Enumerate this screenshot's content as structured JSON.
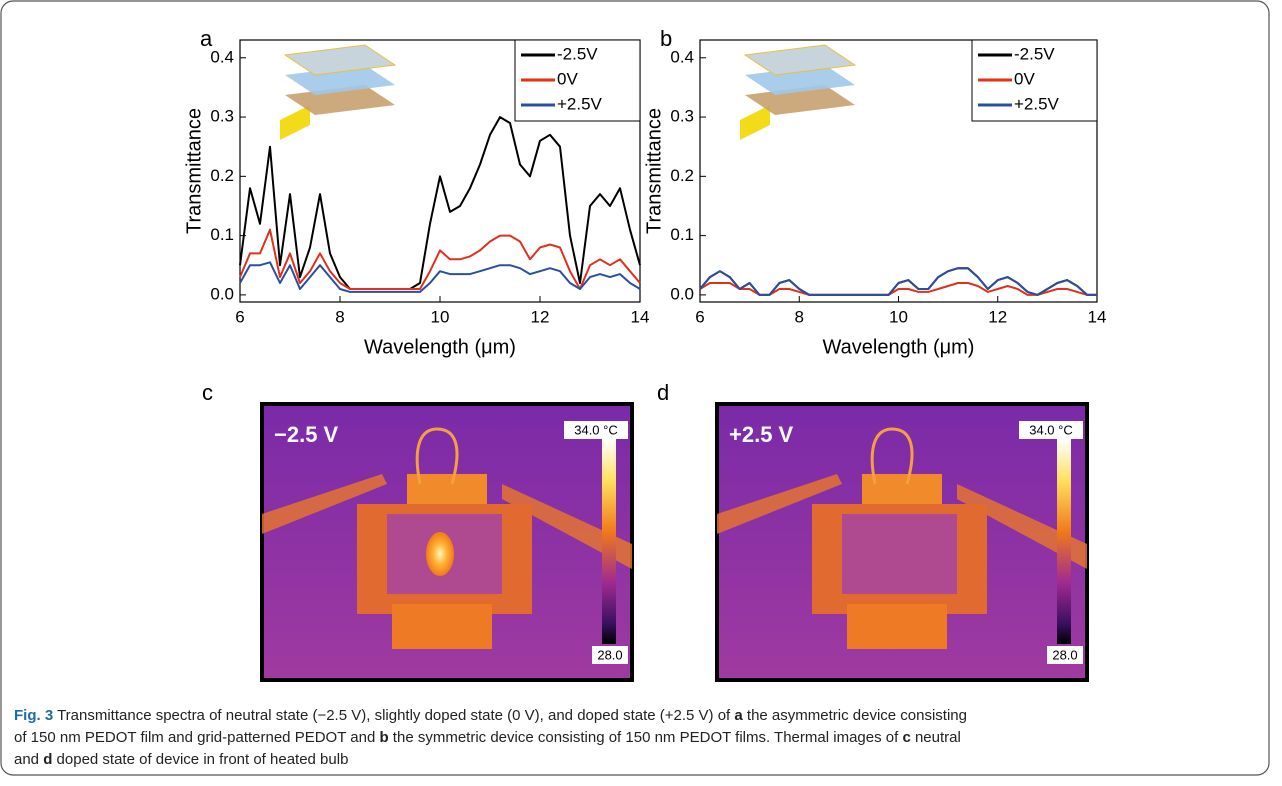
{
  "chart_data": [
    {
      "type": "line",
      "panel_label": "a",
      "xlabel": "Wavelength (μm)",
      "ylabel": "Transmittance",
      "xlim": [
        6,
        14
      ],
      "ylim": [
        -0.012,
        0.43
      ],
      "xticks": [
        6,
        8,
        10,
        12,
        14
      ],
      "yticks": [
        {
          "value": 0,
          "label": "0.0"
        },
        0.1,
        0.2,
        0.3,
        0.4
      ],
      "legend": "upper right",
      "x": [
        6.0,
        6.2,
        6.4,
        6.6,
        6.8,
        7.0,
        7.2,
        7.4,
        7.6,
        7.8,
        8.0,
        8.2,
        8.4,
        8.6,
        8.8,
        9.0,
        9.2,
        9.4,
        9.6,
        9.8,
        10.0,
        10.2,
        10.4,
        10.6,
        10.8,
        11.0,
        11.2,
        11.4,
        11.6,
        11.8,
        12.0,
        12.2,
        12.4,
        12.6,
        12.8,
        13.0,
        13.2,
        13.4,
        13.6,
        13.8,
        14.0
      ],
      "series": [
        {
          "name": "-2.5V",
          "color": "#000000",
          "values": [
            0.05,
            0.18,
            0.12,
            0.25,
            0.05,
            0.17,
            0.03,
            0.08,
            0.17,
            0.07,
            0.03,
            0.01,
            0.01,
            0.01,
            0.01,
            0.01,
            0.01,
            0.01,
            0.02,
            0.12,
            0.2,
            0.14,
            0.15,
            0.18,
            0.22,
            0.27,
            0.3,
            0.29,
            0.22,
            0.2,
            0.26,
            0.27,
            0.25,
            0.1,
            0.02,
            0.15,
            0.17,
            0.15,
            0.18,
            0.11,
            0.05
          ]
        },
        {
          "name": "0V",
          "color": "#e0301e",
          "values": [
            0.03,
            0.07,
            0.07,
            0.11,
            0.03,
            0.07,
            0.02,
            0.04,
            0.07,
            0.04,
            0.02,
            0.01,
            0.01,
            0.01,
            0.01,
            0.01,
            0.01,
            0.01,
            0.01,
            0.04,
            0.075,
            0.06,
            0.06,
            0.065,
            0.075,
            0.09,
            0.1,
            0.1,
            0.09,
            0.06,
            0.08,
            0.085,
            0.08,
            0.04,
            0.01,
            0.05,
            0.06,
            0.05,
            0.06,
            0.04,
            0.02
          ]
        },
        {
          "name": "+2.5V",
          "color": "#2a4fa0",
          "values": [
            0.02,
            0.05,
            0.05,
            0.055,
            0.02,
            0.05,
            0.01,
            0.03,
            0.05,
            0.03,
            0.01,
            0.005,
            0.005,
            0.005,
            0.005,
            0.005,
            0.005,
            0.005,
            0.005,
            0.02,
            0.04,
            0.035,
            0.035,
            0.035,
            0.04,
            0.045,
            0.05,
            0.05,
            0.045,
            0.035,
            0.04,
            0.045,
            0.04,
            0.02,
            0.01,
            0.03,
            0.035,
            0.03,
            0.035,
            0.02,
            0.01
          ]
        }
      ]
    },
    {
      "type": "line",
      "panel_label": "b",
      "xlabel": "Wavelength (μm)",
      "ylabel": "Transmittance",
      "xlim": [
        6,
        14
      ],
      "ylim": [
        -0.012,
        0.43
      ],
      "xticks": [
        6,
        8,
        10,
        12,
        14
      ],
      "yticks": [
        {
          "value": 0,
          "label": "0.0"
        },
        0.1,
        0.2,
        0.3,
        0.4
      ],
      "legend": "upper right",
      "x": [
        6.0,
        6.2,
        6.4,
        6.6,
        6.8,
        7.0,
        7.2,
        7.4,
        7.6,
        7.8,
        8.0,
        8.2,
        8.4,
        8.6,
        8.8,
        9.0,
        9.2,
        9.4,
        9.6,
        9.8,
        10.0,
        10.2,
        10.4,
        10.6,
        10.8,
        11.0,
        11.2,
        11.4,
        11.6,
        11.8,
        12.0,
        12.2,
        12.4,
        12.6,
        12.8,
        13.0,
        13.2,
        13.4,
        13.6,
        13.8,
        14.0
      ],
      "series": [
        {
          "name": "-2.5V",
          "color": "#000000",
          "values": [
            0.01,
            0.03,
            0.04,
            0.03,
            0.01,
            0.02,
            0,
            0,
            0.02,
            0.025,
            0.01,
            0,
            0,
            0,
            0,
            0,
            0,
            0,
            0,
            0,
            0.02,
            0.025,
            0.01,
            0.01,
            0.03,
            0.04,
            0.045,
            0.045,
            0.03,
            0.01,
            0.025,
            0.03,
            0.02,
            0.005,
            0,
            0.01,
            0.02,
            0.025,
            0.015,
            0,
            0
          ]
        },
        {
          "name": "0V",
          "color": "#e0301e",
          "values": [
            0.01,
            0.02,
            0.02,
            0.02,
            0.01,
            0.01,
            0,
            0,
            0.01,
            0.01,
            0.005,
            0,
            0,
            0,
            0,
            0,
            0,
            0,
            0,
            0,
            0.01,
            0.01,
            0.005,
            0.005,
            0.01,
            0.015,
            0.02,
            0.02,
            0.015,
            0.005,
            0.01,
            0.015,
            0.01,
            0,
            0,
            0.005,
            0.01,
            0.01,
            0.005,
            0,
            0
          ]
        },
        {
          "name": "+2.5V",
          "color": "#2a4fa0",
          "values": [
            0.01,
            0.03,
            0.04,
            0.03,
            0.01,
            0.02,
            0,
            0,
            0.02,
            0.025,
            0.01,
            0,
            0,
            0,
            0,
            0,
            0,
            0,
            0,
            0,
            0.02,
            0.025,
            0.01,
            0.01,
            0.03,
            0.04,
            0.045,
            0.045,
            0.03,
            0.01,
            0.025,
            0.03,
            0.02,
            0.005,
            0,
            0.01,
            0.02,
            0.025,
            0.015,
            0,
            0
          ]
        }
      ]
    }
  ],
  "thermal_images": [
    {
      "panel_label": "c",
      "voltage": "−2.5 V",
      "scale_max": "34.0 °C",
      "scale_min": "28.0"
    },
    {
      "panel_label": "d",
      "voltage": "+2.5 V",
      "scale_max": "34.0 °C",
      "scale_min": "28.0"
    }
  ],
  "caption": {
    "label": "Fig. 3",
    "segments": [
      " Transmittance spectra of neutral state (−2.5 V), slightly doped state (0 V), and doped state (+2.5 V) of ",
      "a",
      " the asymmetric device consisting",
      "of 150 nm PEDOT film and grid-patterned PEDOT and ",
      "b",
      " the symmetric device consisting of 150 nm PEDOT films. Thermal images of ",
      "c",
      " neutral",
      "and ",
      "d",
      " doped state of device in front of heated bulb"
    ]
  }
}
